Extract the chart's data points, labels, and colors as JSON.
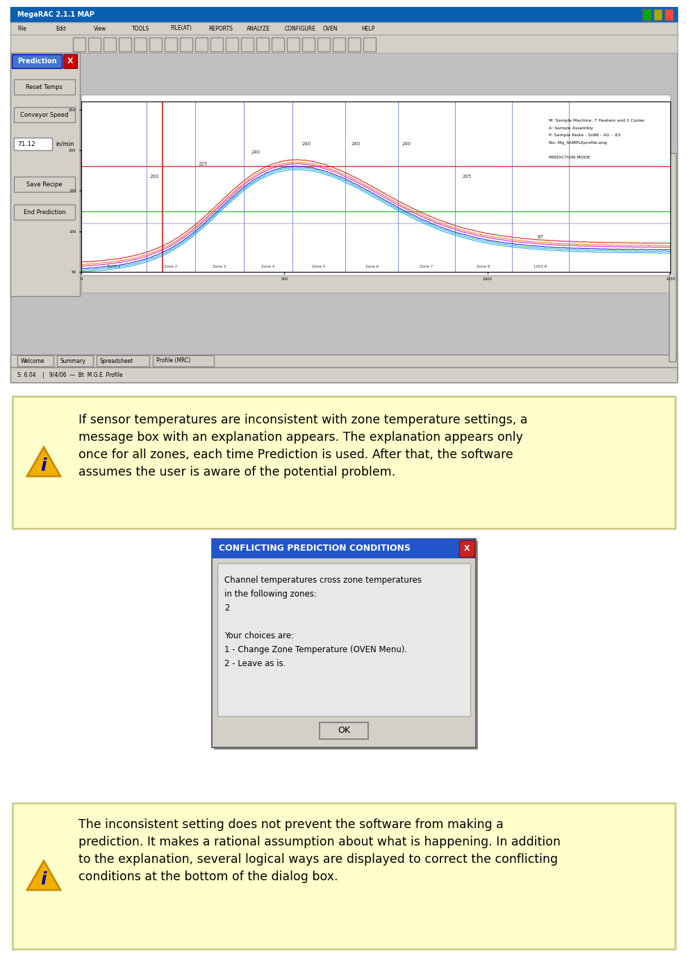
{
  "fig_width": 9.7,
  "fig_height": 13.65,
  "bg_color": "#ffffff",
  "screenshot_bg": "#d4d0c8",
  "titlebar_color": "#0a5fb0",
  "titlebar_text": "MegaRAC 2.1.1 MAP",
  "note_box1_bg": "#ffffcc",
  "note_box1_border": "#cccc00",
  "note_box1_text": "If sensor temperatures are inconsistent with zone temperature settings, a\nmessage box with an explanation appears. The explanation appears only\nonce for all zones, each time Prediction is used. After that, the software\nassumes the user is aware of the potential problem.",
  "dialog_title": "CONFLICTING PREDICTION CONDITIONS",
  "dialog_title_bg": "#2255cc",
  "dialog_title_color": "#ffffff",
  "dialog_bg": "#d4d0c8",
  "dialog_content_bg": "#e8e8e8",
  "dialog_text_line1": "Channel temperatures cross zone temperatures",
  "dialog_text_line2": "in the following zones:",
  "dialog_text_line3": "2",
  "dialog_text_line4": "Your choices are:",
  "dialog_text_line5": "1 - Change Zone Temperature (OVEN Menu).",
  "dialog_text_line6": "2 - Leave as is.",
  "dialog_ok_text": "OK",
  "note_box2_bg": "#ffffcc",
  "note_box2_border": "#cccc00",
  "note_box2_text": "The inconsistent setting does not prevent the software from making a\nprediction. It makes a rational assumption about what is happening. In addition\nto the explanation, several logical ways are displayed to correct the conflicting\nconditions at the bottom of the dialog box."
}
